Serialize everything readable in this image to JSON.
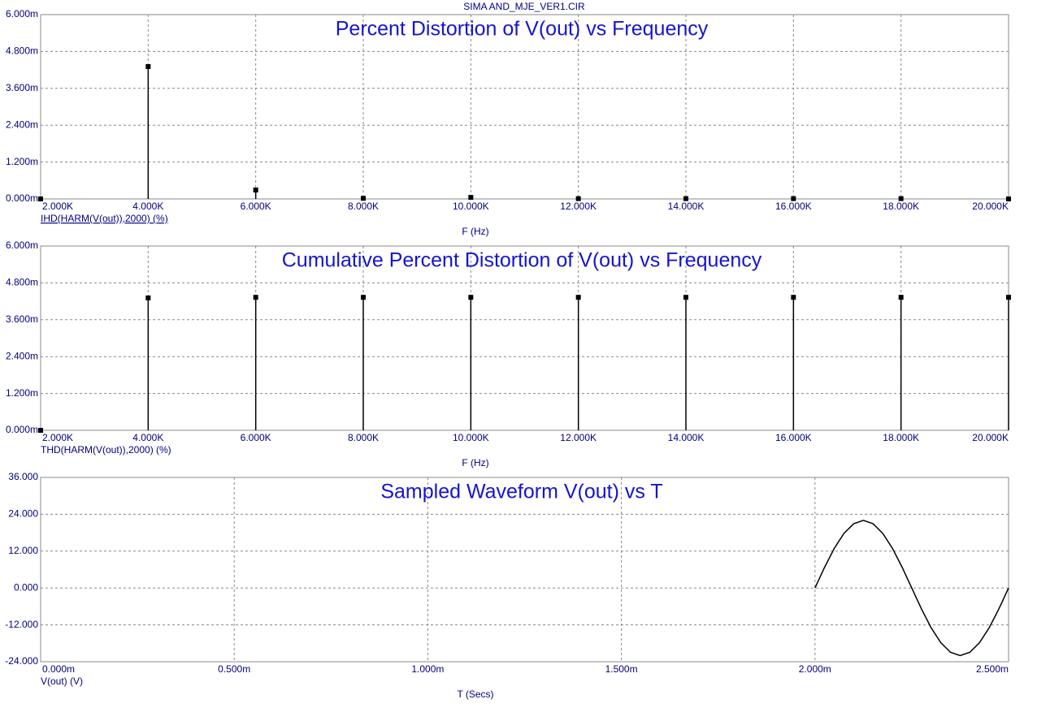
{
  "page_title": "SIMA AND_MJE_VER1.CIR",
  "chart_data": [
    {
      "type": "stem",
      "title": "Percent Distortion of V(out) vs Frequency",
      "x_label": "F (Hz)",
      "grid": true,
      "x": [
        2000,
        4000,
        6000,
        8000,
        10000,
        12000,
        14000,
        16000,
        18000,
        20000
      ],
      "series": [
        {
          "name": "IHD(HARM(V(out)),2000) (%)",
          "color": "#000000",
          "values": [
            0,
            4.31,
            0.29,
            0.02,
            0.05,
            0.01,
            0.01,
            0.01,
            0.01,
            0
          ]
        }
      ],
      "xlim": [
        2000,
        20000
      ],
      "xticks": [
        {
          "value": 2000,
          "label": "2.000K"
        },
        {
          "value": 4000,
          "label": "4.000K"
        },
        {
          "value": 6000,
          "label": "6.000K"
        },
        {
          "value": 8000,
          "label": "8.000K"
        },
        {
          "value": 10000,
          "label": "10.000K"
        },
        {
          "value": 12000,
          "label": "12.000K"
        },
        {
          "value": 14000,
          "label": "14.000K"
        },
        {
          "value": 16000,
          "label": "16.000K"
        },
        {
          "value": 18000,
          "label": "18.000K"
        },
        {
          "value": 20000,
          "label": "20.000K"
        }
      ],
      "ylim": [
        0,
        6
      ],
      "yticks": [
        {
          "value": 0,
          "label": "0.000m"
        },
        {
          "value": 1.2,
          "label": "1.200m"
        },
        {
          "value": 2.4,
          "label": "2.400m"
        },
        {
          "value": 3.6,
          "label": "3.600m"
        },
        {
          "value": 4.8,
          "label": "4.800m"
        },
        {
          "value": 6,
          "label": "6.000m"
        }
      ]
    },
    {
      "type": "stem",
      "title": "Cumulative Percent Distortion of V(out) vs Frequency",
      "x_label": "F (Hz)",
      "grid": true,
      "x": [
        2000,
        4000,
        6000,
        8000,
        10000,
        12000,
        14000,
        16000,
        18000,
        20000
      ],
      "series": [
        {
          "name": "THD(HARM(V(out)),2000) (%)",
          "color": "#000000",
          "values": [
            0,
            4.31,
            4.33,
            4.33,
            4.33,
            4.33,
            4.33,
            4.33,
            4.33,
            4.33
          ]
        }
      ],
      "xlim": [
        2000,
        20000
      ],
      "xticks": [
        {
          "value": 2000,
          "label": "2.000K"
        },
        {
          "value": 4000,
          "label": "4.000K"
        },
        {
          "value": 6000,
          "label": "6.000K"
        },
        {
          "value": 8000,
          "label": "8.000K"
        },
        {
          "value": 10000,
          "label": "10.000K"
        },
        {
          "value": 12000,
          "label": "12.000K"
        },
        {
          "value": 14000,
          "label": "14.000K"
        },
        {
          "value": 16000,
          "label": "16.000K"
        },
        {
          "value": 18000,
          "label": "18.000K"
        },
        {
          "value": 20000,
          "label": "20.000K"
        }
      ],
      "ylim": [
        0,
        6
      ],
      "yticks": [
        {
          "value": 0,
          "label": "0.000m"
        },
        {
          "value": 1.2,
          "label": "1.200m"
        },
        {
          "value": 2.4,
          "label": "2.400m"
        },
        {
          "value": 3.6,
          "label": "3.600m"
        },
        {
          "value": 4.8,
          "label": "4.800m"
        },
        {
          "value": 6,
          "label": "6.000m"
        }
      ]
    },
    {
      "type": "line",
      "title": "Sampled Waveform  V(out) vs T",
      "x_label": "T (Secs)",
      "grid": true,
      "x": [
        2.0,
        2.025,
        2.05,
        2.075,
        2.1,
        2.125,
        2.15,
        2.175,
        2.2,
        2.225,
        2.25,
        2.275,
        2.3,
        2.325,
        2.35,
        2.375,
        2.4,
        2.425,
        2.45,
        2.475,
        2.5
      ],
      "series": [
        {
          "name": "V(out) (V)",
          "color": "#000000",
          "values": [
            0,
            6.8,
            12.94,
            17.8,
            20.92,
            22,
            20.92,
            17.8,
            12.94,
            6.8,
            0,
            -6.8,
            -12.94,
            -17.8,
            -20.92,
            -22,
            -20.92,
            -17.8,
            -12.94,
            -6.8,
            0
          ]
        }
      ],
      "xlim": [
        0,
        2.5
      ],
      "xticks": [
        {
          "value": 0,
          "label": "0.000m"
        },
        {
          "value": 0.5,
          "label": "0.500m"
        },
        {
          "value": 1,
          "label": "1.000m"
        },
        {
          "value": 1.5,
          "label": "1.500m"
        },
        {
          "value": 2,
          "label": "2.000m"
        },
        {
          "value": 2.5,
          "label": "2.500m"
        }
      ],
      "ylim": [
        -24,
        36
      ],
      "yticks": [
        {
          "value": -24,
          "label": "-24.000"
        },
        {
          "value": -12,
          "label": "-12.000"
        },
        {
          "value": 0,
          "label": "0.000"
        },
        {
          "value": 12,
          "label": "12.000"
        },
        {
          "value": 24,
          "label": "24.000"
        },
        {
          "value": 36,
          "label": "36.000"
        }
      ]
    }
  ]
}
